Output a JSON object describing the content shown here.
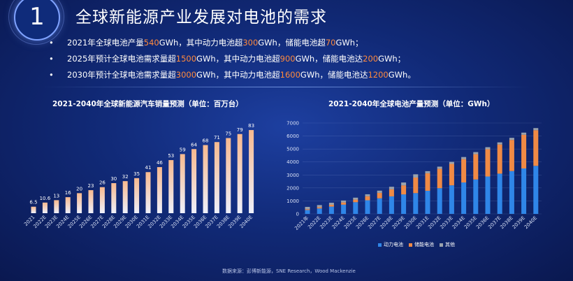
{
  "header": {
    "number": "1",
    "title": "全球新能源产业发展对电池的需求"
  },
  "bullets": [
    {
      "marker": "•",
      "parts": [
        "2021年全球电池产量",
        "540",
        "GWh，其中动力电池超",
        "300",
        "GWh，储能电池超",
        "70",
        "GWh；"
      ]
    },
    {
      "marker": "•",
      "parts": [
        "2025年预计全球电池需求量超",
        "1500",
        "GWh，其中动力电池超",
        "900",
        "GWh，储能电池达",
        "200",
        "GWh；"
      ]
    },
    {
      "marker": "•",
      "parts": [
        "2030年预计全球电池需求量超",
        "3000",
        "GWh，其中动力电池超",
        "1600",
        "GWh，储能电池达",
        "1200",
        "GWh。"
      ]
    }
  ],
  "colors": {
    "highlight": "#ff8a3d",
    "bar_top": "#f7b98f",
    "bar_bottom": "#eef0fb",
    "power": "#2f86e8",
    "storage": "#f08a45",
    "other": "#9aa2ad"
  },
  "chart_data": [
    {
      "type": "bar",
      "title": "2021-2040年全球新能源汽车销量预测（单位：百万台）",
      "categories": [
        "2021",
        "2022E",
        "2023E",
        "2024E",
        "2025E",
        "2026E",
        "2027E",
        "2028E",
        "2029E",
        "2030E",
        "2031E",
        "2032E",
        "2033E",
        "2034E",
        "2035E",
        "2036E",
        "2037E",
        "2038E",
        "2039E",
        "2040E"
      ],
      "values": [
        6.5,
        10.6,
        13,
        16,
        20,
        23,
        26,
        30,
        32,
        35,
        41,
        46,
        53,
        59,
        64,
        68,
        71,
        75,
        79,
        83
      ],
      "value_labels": [
        "6.5",
        "10.6",
        "13",
        "16",
        "20",
        "23",
        "26",
        "30",
        "32",
        "35",
        "41",
        "46",
        "53",
        "59",
        "64",
        "68",
        "71",
        "75",
        "79",
        "83"
      ],
      "ylim": [
        0,
        90
      ],
      "grid": false
    },
    {
      "type": "bar",
      "stacked": true,
      "title": "2021-2040年全球电池产量预测（单位：GWh）",
      "categories": [
        "2021年",
        "2022E",
        "2023E",
        "2024E",
        "2025E",
        "2026E",
        "2027E",
        "2028E",
        "2029E",
        "2030E",
        "2031E",
        "2032E",
        "2033E",
        "2034E",
        "2035E",
        "2036E",
        "2037E",
        "2038E",
        "2039E",
        "2040E"
      ],
      "ylim": [
        0,
        7000
      ],
      "yticks": [
        "0",
        "1000",
        "2000",
        "3000",
        "4000",
        "5000",
        "6000",
        "7000"
      ],
      "grid": true,
      "legend_position": "bottom",
      "series": [
        {
          "name": "动力电池",
          "values": [
            300,
            420,
            560,
            710,
            900,
            1050,
            1200,
            1350,
            1500,
            1600,
            1780,
            1980,
            2200,
            2420,
            2650,
            2880,
            3100,
            3300,
            3500,
            3700
          ]
        },
        {
          "name": "储能电池",
          "values": [
            70,
            100,
            140,
            170,
            200,
            310,
            420,
            550,
            700,
            1200,
            1350,
            1500,
            1650,
            1800,
            1950,
            2100,
            2250,
            2400,
            2600,
            2750
          ]
        },
        {
          "name": "其他",
          "values": [
            170,
            160,
            160,
            150,
            150,
            150,
            170,
            190,
            220,
            250,
            160,
            160,
            160,
            160,
            160,
            160,
            160,
            160,
            160,
            160
          ]
        }
      ]
    }
  ],
  "footer": {
    "source": "数据来源：彭博新能源，SNE Research，Wood Mackenzie"
  }
}
